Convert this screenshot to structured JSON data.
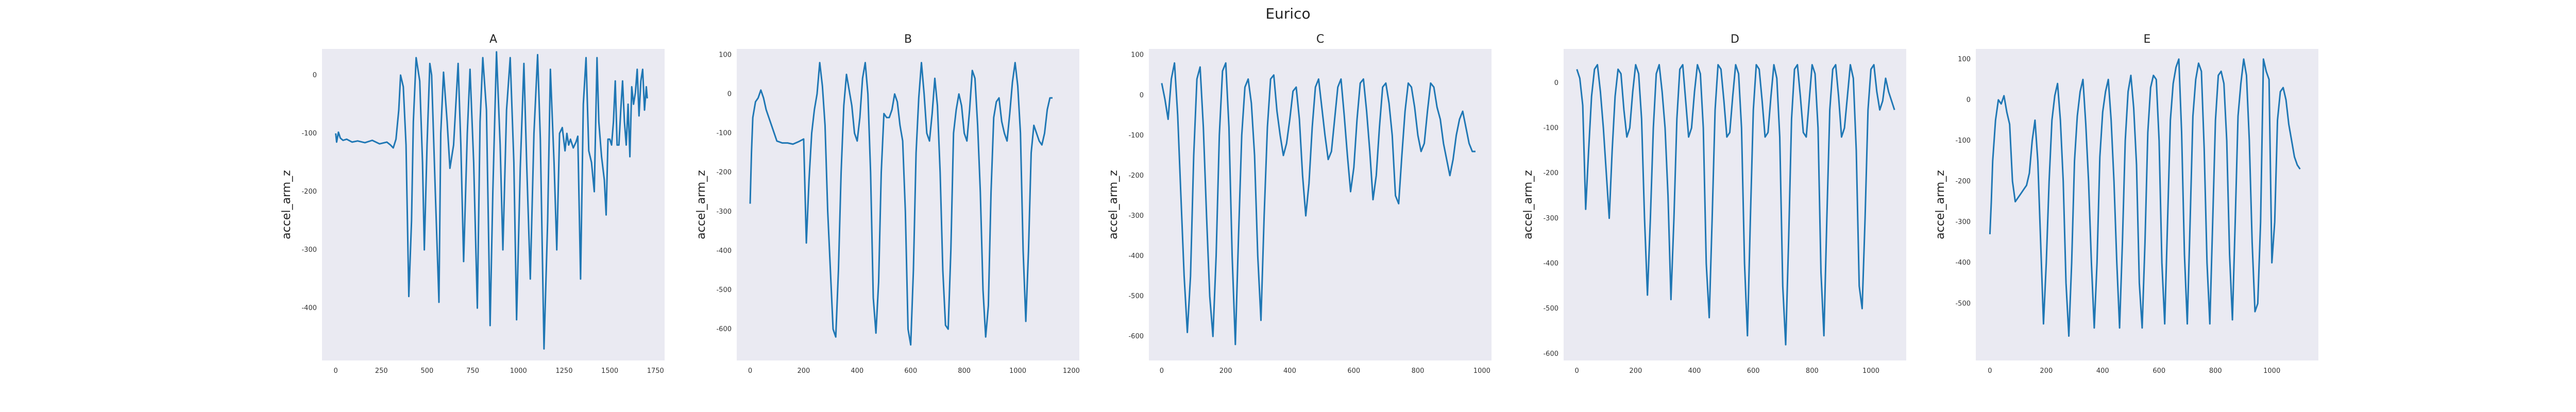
{
  "figure": {
    "suptitle": "Eurico"
  },
  "colors": {
    "line": "#1f77b4",
    "panel_bg": "#eaeaf2"
  },
  "chart_data": [
    {
      "type": "line",
      "title": "A",
      "xlabel": "",
      "ylabel": "accel_arm_z",
      "xlim": [
        -75,
        1800
      ],
      "ylim": [
        -490,
        45
      ],
      "grid": false,
      "legend": "none",
      "xticks": [
        0,
        250,
        500,
        750,
        1000,
        1250,
        1500,
        1750
      ],
      "yticks": [
        -400,
        -300,
        -200,
        -100,
        0
      ],
      "x": [
        0,
        5,
        15,
        25,
        40,
        60,
        90,
        120,
        160,
        200,
        240,
        280,
        300,
        315,
        330,
        345,
        355,
        370,
        385,
        400,
        415,
        425,
        440,
        460,
        475,
        485,
        500,
        515,
        525,
        545,
        565,
        575,
        590,
        610,
        625,
        645,
        670,
        685,
        700,
        720,
        735,
        755,
        775,
        790,
        805,
        825,
        845,
        860,
        880,
        900,
        915,
        935,
        955,
        975,
        990,
        1010,
        1030,
        1045,
        1065,
        1085,
        1105,
        1120,
        1140,
        1160,
        1175,
        1195,
        1210,
        1225,
        1240,
        1255,
        1265,
        1275,
        1285,
        1300,
        1315,
        1325,
        1340,
        1355,
        1370,
        1385,
        1400,
        1415,
        1430,
        1440,
        1455,
        1470,
        1480,
        1490,
        1500,
        1510,
        1520,
        1530,
        1540,
        1550,
        1560,
        1570,
        1580,
        1590,
        1600,
        1610,
        1620,
        1630,
        1640,
        1650,
        1660,
        1670,
        1680,
        1690,
        1700,
        1705
      ],
      "y": [
        -100,
        -115,
        -98,
        -108,
        -112,
        -110,
        -115,
        -113,
        -116,
        -112,
        -118,
        -115,
        -120,
        -125,
        -110,
        -60,
        0,
        -20,
        -120,
        -380,
        -250,
        -80,
        30,
        -10,
        -150,
        -300,
        -120,
        20,
        0,
        -200,
        -390,
        -100,
        5,
        -80,
        -160,
        -120,
        20,
        -120,
        -320,
        -100,
        10,
        -150,
        -400,
        -80,
        30,
        -60,
        -430,
        -200,
        40,
        -120,
        -300,
        -60,
        30,
        -150,
        -420,
        -160,
        20,
        -150,
        -350,
        -100,
        35,
        -110,
        -470,
        -250,
        10,
        -150,
        -300,
        -100,
        -90,
        -130,
        -100,
        -120,
        -110,
        -125,
        -115,
        -105,
        -350,
        -50,
        30,
        -130,
        -150,
        -200,
        30,
        -80,
        -140,
        -180,
        -240,
        -110,
        -110,
        -120,
        -80,
        -10,
        -120,
        -120,
        -60,
        -10,
        -80,
        -120,
        -50,
        -140,
        -20,
        -50,
        -30,
        10,
        -70,
        -10,
        10,
        -60,
        -20,
        -40
      ]
    },
    {
      "type": "line",
      "title": "B",
      "xlabel": "",
      "ylabel": "accel_arm_z",
      "xlim": [
        -50,
        1230
      ],
      "ylim": [
        -680,
        115
      ],
      "grid": false,
      "legend": "none",
      "xticks": [
        0,
        200,
        400,
        600,
        800,
        1000,
        1200
      ],
      "yticks": [
        -600,
        -500,
        -400,
        -300,
        -200,
        -100,
        0,
        100
      ],
      "x": [
        0,
        5,
        10,
        20,
        30,
        40,
        50,
        60,
        70,
        80,
        90,
        100,
        120,
        140,
        160,
        180,
        200,
        210,
        220,
        230,
        240,
        250,
        260,
        270,
        280,
        290,
        300,
        310,
        320,
        330,
        340,
        350,
        360,
        370,
        380,
        390,
        400,
        410,
        420,
        430,
        440,
        450,
        460,
        470,
        480,
        490,
        500,
        510,
        520,
        530,
        540,
        550,
        560,
        570,
        580,
        590,
        600,
        610,
        620,
        630,
        640,
        650,
        660,
        670,
        680,
        690,
        700,
        710,
        720,
        730,
        740,
        750,
        760,
        770,
        780,
        790,
        800,
        810,
        820,
        830,
        840,
        850,
        860,
        870,
        880,
        890,
        900,
        910,
        920,
        930,
        940,
        950,
        960,
        970,
        980,
        990,
        1000,
        1010,
        1020,
        1030,
        1040,
        1050,
        1060,
        1070,
        1080,
        1090,
        1100,
        1110,
        1120,
        1130
      ],
      "y": [
        -280,
        -150,
        -60,
        -20,
        -10,
        10,
        -10,
        -40,
        -60,
        -80,
        -100,
        -120,
        -125,
        -125,
        -128,
        -122,
        -115,
        -380,
        -220,
        -100,
        -40,
        0,
        80,
        20,
        -80,
        -300,
        -450,
        -600,
        -620,
        -450,
        -200,
        -30,
        50,
        10,
        -30,
        -100,
        -120,
        -60,
        40,
        80,
        0,
        -200,
        -520,
        -610,
        -480,
        -200,
        -50,
        -60,
        -60,
        -40,
        0,
        -20,
        -80,
        -120,
        -300,
        -600,
        -640,
        -450,
        -150,
        -10,
        80,
        0,
        -100,
        -120,
        -50,
        40,
        -30,
        -200,
        -450,
        -590,
        -600,
        -400,
        -100,
        -40,
        0,
        -30,
        -100,
        -120,
        -40,
        60,
        40,
        -80,
        -250,
        -500,
        -620,
        -540,
        -250,
        -60,
        -20,
        -10,
        -70,
        -100,
        -120,
        -50,
        30,
        80,
        20,
        -100,
        -400,
        -580,
        -400,
        -150,
        -80,
        -100,
        -120,
        -130,
        -100,
        -40,
        -10,
        -10
      ]
    },
    {
      "type": "line",
      "title": "C",
      "xlabel": "",
      "ylabel": "accel_arm_z",
      "xlim": [
        -40,
        1030
      ],
      "ylim": [
        -660,
        115
      ],
      "grid": false,
      "legend": "none",
      "xticks": [
        0,
        200,
        400,
        600,
        800,
        1000
      ],
      "yticks": [
        -600,
        -500,
        -400,
        -300,
        -200,
        -100,
        0,
        100
      ],
      "x": [
        0,
        10,
        20,
        30,
        40,
        50,
        60,
        70,
        80,
        90,
        100,
        110,
        120,
        130,
        140,
        150,
        160,
        170,
        180,
        190,
        200,
        210,
        220,
        230,
        240,
        250,
        260,
        270,
        280,
        290,
        300,
        310,
        320,
        330,
        340,
        350,
        360,
        370,
        380,
        390,
        400,
        410,
        420,
        430,
        440,
        450,
        460,
        470,
        480,
        490,
        500,
        510,
        520,
        530,
        540,
        550,
        560,
        570,
        580,
        590,
        600,
        610,
        620,
        630,
        640,
        650,
        660,
        670,
        680,
        690,
        700,
        710,
        720,
        730,
        740,
        750,
        760,
        770,
        780,
        790,
        800,
        810,
        820,
        830,
        840,
        850,
        860,
        870,
        880,
        890,
        900,
        910,
        920,
        930,
        940,
        950,
        960,
        970,
        980
      ],
      "y": [
        30,
        -10,
        -60,
        40,
        80,
        -50,
        -250,
        -450,
        -590,
        -450,
        -150,
        40,
        70,
        -80,
        -300,
        -500,
        -600,
        -400,
        -100,
        60,
        80,
        -80,
        -400,
        -620,
        -350,
        -100,
        20,
        40,
        -20,
        -150,
        -400,
        -560,
        -300,
        -80,
        40,
        50,
        -40,
        -100,
        -150,
        -120,
        -60,
        10,
        20,
        -60,
        -200,
        -300,
        -220,
        -80,
        20,
        40,
        -30,
        -100,
        -160,
        -140,
        -60,
        20,
        40,
        -50,
        -150,
        -240,
        -180,
        -60,
        30,
        40,
        -40,
        -140,
        -260,
        -200,
        -80,
        20,
        30,
        -20,
        -100,
        -250,
        -270,
        -150,
        -40,
        30,
        20,
        -30,
        -100,
        -140,
        -120,
        -40,
        30,
        20,
        -30,
        -60,
        -120,
        -160,
        -200,
        -160,
        -100,
        -60,
        -40,
        -80,
        -120,
        -140,
        -140
      ]
    },
    {
      "type": "line",
      "title": "D",
      "xlabel": "",
      "ylabel": "accel_arm_z",
      "xlim": [
        -45,
        1120
      ],
      "ylim": [
        -615,
        75
      ],
      "grid": false,
      "legend": "none",
      "xticks": [
        0,
        200,
        400,
        600,
        800,
        1000
      ],
      "yticks": [
        -600,
        -500,
        -400,
        -300,
        -200,
        -100,
        0
      ],
      "x": [
        0,
        10,
        20,
        30,
        40,
        50,
        60,
        70,
        80,
        90,
        100,
        110,
        120,
        130,
        140,
        150,
        160,
        170,
        180,
        190,
        200,
        210,
        220,
        230,
        240,
        250,
        260,
        270,
        280,
        290,
        300,
        310,
        320,
        330,
        340,
        350,
        360,
        370,
        380,
        390,
        400,
        410,
        420,
        430,
        440,
        450,
        460,
        470,
        480,
        490,
        500,
        510,
        520,
        530,
        540,
        550,
        560,
        570,
        580,
        590,
        600,
        610,
        620,
        630,
        640,
        650,
        660,
        670,
        680,
        690,
        700,
        710,
        720,
        730,
        740,
        750,
        760,
        770,
        780,
        790,
        800,
        810,
        820,
        830,
        840,
        850,
        860,
        870,
        880,
        890,
        900,
        910,
        920,
        930,
        940,
        950,
        960,
        970,
        980,
        990,
        1000,
        1010,
        1020,
        1030,
        1040,
        1050,
        1060,
        1070,
        1080
      ],
      "y": [
        30,
        10,
        -50,
        -280,
        -150,
        -30,
        30,
        40,
        -20,
        -100,
        -200,
        -300,
        -150,
        -30,
        30,
        20,
        -60,
        -120,
        -100,
        -20,
        40,
        20,
        -80,
        -300,
        -470,
        -300,
        -100,
        20,
        40,
        -20,
        -100,
        -250,
        -480,
        -300,
        -80,
        30,
        40,
        -40,
        -120,
        -100,
        -20,
        40,
        20,
        -100,
        -400,
        -520,
        -300,
        -60,
        40,
        30,
        -40,
        -120,
        -110,
        -30,
        40,
        20,
        -100,
        -400,
        -560,
        -300,
        -60,
        40,
        30,
        -40,
        -120,
        -110,
        -30,
        40,
        10,
        -120,
        -450,
        -580,
        -350,
        -80,
        30,
        40,
        -30,
        -110,
        -120,
        -40,
        40,
        20,
        -100,
        -420,
        -560,
        -300,
        -60,
        30,
        40,
        -30,
        -120,
        -100,
        -30,
        40,
        10,
        -150,
        -450,
        -500,
        -300,
        -60,
        30,
        40,
        -20,
        -60,
        -40,
        10,
        -20,
        -40,
        -60
      ]
    },
    {
      "type": "line",
      "title": "E",
      "xlabel": "",
      "ylabel": "accel_arm_z",
      "xlim": [
        -50,
        1165
      ],
      "ylim": [
        -640,
        125
      ],
      "grid": false,
      "legend": "none",
      "xticks": [
        0,
        200,
        400,
        600,
        800,
        1000
      ],
      "yticks": [
        -500,
        -400,
        -300,
        -200,
        -100,
        0,
        100
      ],
      "x": [
        0,
        5,
        10,
        20,
        30,
        40,
        50,
        60,
        70,
        80,
        90,
        100,
        110,
        120,
        130,
        140,
        150,
        160,
        170,
        180,
        190,
        200,
        210,
        220,
        230,
        240,
        250,
        260,
        270,
        280,
        290,
        300,
        310,
        320,
        330,
        340,
        350,
        360,
        370,
        380,
        390,
        400,
        410,
        420,
        430,
        440,
        450,
        460,
        470,
        480,
        490,
        500,
        510,
        520,
        530,
        540,
        550,
        560,
        570,
        580,
        590,
        600,
        610,
        620,
        630,
        640,
        650,
        660,
        670,
        680,
        690,
        700,
        710,
        720,
        730,
        740,
        750,
        760,
        770,
        780,
        790,
        800,
        810,
        820,
        830,
        840,
        850,
        860,
        870,
        880,
        890,
        900,
        910,
        920,
        930,
        940,
        950,
        960,
        970,
        980,
        990,
        1000,
        1010,
        1020,
        1030,
        1040,
        1050,
        1060,
        1070,
        1080,
        1090,
        1100
      ],
      "y": [
        -330,
        -250,
        -150,
        -50,
        0,
        -10,
        10,
        -30,
        -60,
        -200,
        -250,
        -240,
        -230,
        -220,
        -210,
        -180,
        -100,
        -50,
        -150,
        -350,
        -550,
        -400,
        -200,
        -50,
        10,
        40,
        -50,
        -200,
        -450,
        -580,
        -400,
        -150,
        -40,
        20,
        50,
        -60,
        -200,
        -400,
        -560,
        -400,
        -140,
        -30,
        20,
        50,
        -50,
        -200,
        -400,
        -560,
        -350,
        -100,
        20,
        60,
        -20,
        -160,
        -450,
        -560,
        -350,
        -80,
        30,
        60,
        50,
        -100,
        -400,
        -550,
        -300,
        -50,
        40,
        80,
        100,
        -80,
        -380,
        -550,
        -300,
        -40,
        50,
        90,
        70,
        -120,
        -400,
        -550,
        -300,
        -50,
        60,
        70,
        40,
        -100,
        -380,
        -540,
        -300,
        -40,
        40,
        100,
        60,
        -100,
        -350,
        -520,
        -500,
        -300,
        100,
        70,
        50,
        -400,
        -300,
        -50,
        20,
        30,
        0,
        -60,
        -100,
        -140,
        -160,
        -170
      ]
    }
  ]
}
